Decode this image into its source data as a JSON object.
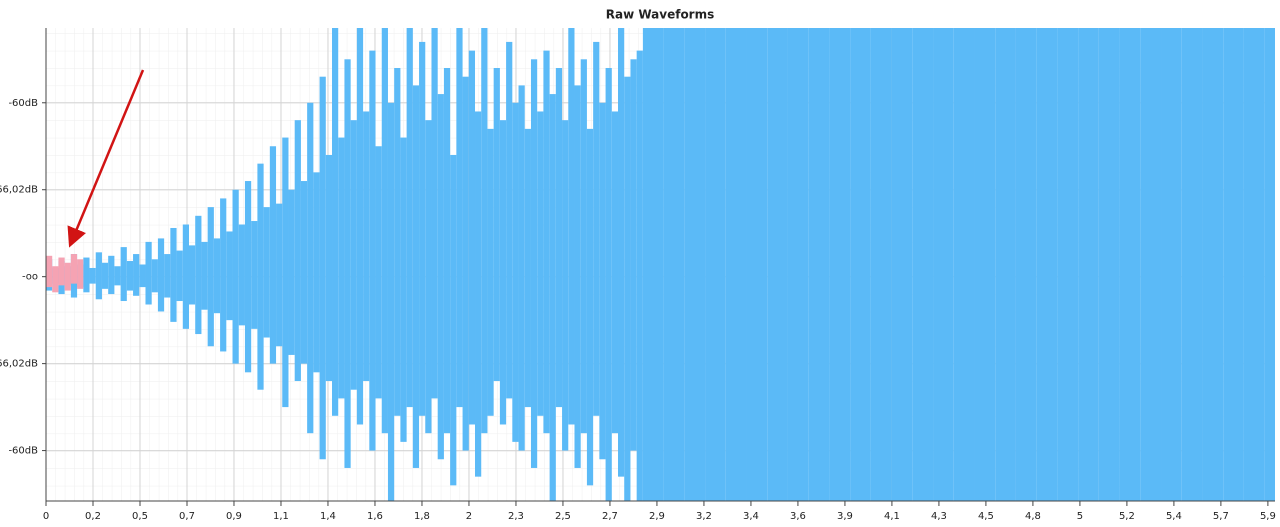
{
  "chart_data": {
    "type": "waveform",
    "title": "Raw Waveforms",
    "xlim": [
      0,
      5.93
    ],
    "xticks": [
      0,
      {
        "value": 0.2268,
        "label": "0,2"
      },
      {
        "value": 0.4535,
        "label": "0,5"
      },
      {
        "value": 0.6803,
        "label": "0,7"
      },
      {
        "value": 0.907,
        "label": "0,9"
      },
      {
        "value": 1.1338,
        "label": "1,1"
      },
      {
        "value": 1.3605,
        "label": "1,4"
      },
      {
        "value": 1.5873,
        "label": "1,6"
      },
      {
        "value": 1.8141,
        "label": "1,8"
      },
      {
        "value": 2.0408,
        "label": "2"
      },
      {
        "value": 2.2676,
        "label": "2,3"
      },
      {
        "value": 2.4943,
        "label": "2,5"
      },
      {
        "value": 2.7211,
        "label": "2,7"
      },
      {
        "value": 2.9478,
        "label": "2,9"
      },
      {
        "value": 3.1746,
        "label": "3,2"
      },
      {
        "value": 3.4014,
        "label": "3,4"
      },
      {
        "value": 3.6281,
        "label": "3,6"
      },
      {
        "value": 3.8549,
        "label": "3,9"
      },
      {
        "value": 4.0816,
        "label": "4,1"
      },
      {
        "value": 4.3084,
        "label": "4,3"
      },
      {
        "value": 4.5351,
        "label": "4,5"
      },
      {
        "value": 4.7619,
        "label": "4,8"
      },
      {
        "value": 4.9887,
        "label": "5"
      },
      {
        "value": 5.2154,
        "label": "5,2"
      },
      {
        "value": 5.4422,
        "label": "5,4"
      },
      {
        "value": 5.6689,
        "label": "5,7"
      },
      {
        "value": 5.8957,
        "label": "5,9"
      }
    ],
    "ylim": [
      -12.9,
      14.3
    ],
    "yticks": [
      {
        "value": 10,
        "label": "-60dB"
      },
      {
        "value": 5,
        "label": "-66,02dB"
      },
      {
        "value": 0,
        "label": "-oo"
      },
      {
        "value": -5,
        "label": "-66,02dB"
      },
      {
        "value": -10,
        "label": "-60dB"
      }
    ],
    "grid": true,
    "series": [
      {
        "color": "#5bbaf7",
        "x": [
          0,
          0.03,
          0.06,
          0.09,
          0.12,
          0.15,
          0.18,
          0.21,
          0.24,
          0.27,
          0.3,
          0.33,
          0.36,
          0.39,
          0.42,
          0.45,
          0.48,
          0.51,
          0.54,
          0.57,
          0.6,
          0.63,
          0.66,
          0.69,
          0.72,
          0.75,
          0.78,
          0.81,
          0.84,
          0.87,
          0.9,
          0.93,
          0.96,
          0.99,
          1.02,
          1.05,
          1.08,
          1.11,
          1.14,
          1.17,
          1.2,
          1.23,
          1.26,
          1.29,
          1.32,
          1.35,
          1.38,
          1.41,
          1.44,
          1.47,
          1.5,
          1.53,
          1.56,
          1.59,
          1.62,
          1.65,
          1.68,
          1.71,
          1.74,
          1.77,
          1.8,
          1.83,
          1.86,
          1.89,
          1.92,
          1.95,
          1.98,
          2.01,
          2.04,
          2.07,
          2.1,
          2.13,
          2.16,
          2.19,
          2.22,
          2.25,
          2.28,
          2.31,
          2.34,
          2.37,
          2.4,
          2.43,
          2.46,
          2.49,
          2.52,
          2.55,
          2.58,
          2.61,
          2.64,
          2.67,
          2.7,
          2.73,
          2.76,
          2.79,
          2.82,
          2.85,
          2.88,
          2.98,
          3.08,
          3.18,
          3.28,
          3.38,
          3.48,
          3.58,
          3.68,
          3.78,
          3.88,
          3.98,
          4.08,
          4.18,
          4.28,
          4.38,
          4.48,
          4.58,
          4.68,
          4.78,
          4.88,
          4.98,
          5.08,
          5.18,
          5.28,
          5.38,
          5.48,
          5.58,
          5.68,
          5.78,
          5.88
        ],
        "max": [
          1.0,
          0.5,
          0.9,
          0.6,
          1.3,
          0.7,
          1.1,
          0.5,
          1.4,
          0.8,
          1.2,
          0.6,
          1.7,
          0.9,
          1.3,
          0.7,
          2.0,
          1.0,
          2.2,
          1.3,
          2.8,
          1.5,
          3.0,
          1.8,
          3.5,
          2.0,
          4.0,
          2.2,
          4.5,
          2.6,
          5.0,
          3.0,
          5.5,
          3.2,
          6.5,
          4.0,
          7.5,
          4.2,
          8.0,
          5.0,
          9.0,
          5.5,
          10.0,
          6.0,
          11.5,
          7.0,
          14.3,
          8.0,
          12.5,
          9.0,
          14.3,
          9.5,
          13.0,
          7.5,
          14.3,
          10.0,
          12.0,
          8.0,
          14.3,
          11.0,
          13.5,
          9.0,
          14.3,
          10.5,
          12.0,
          7.0,
          14.3,
          11.5,
          13.0,
          9.5,
          14.3,
          8.5,
          12.0,
          9.0,
          13.5,
          10.0,
          11.0,
          8.5,
          12.5,
          9.5,
          13.0,
          10.5,
          12.0,
          9.0,
          14.3,
          11.0,
          12.5,
          8.5,
          13.5,
          10.0,
          12.0,
          9.5,
          14.3,
          11.5,
          12.5,
          13.0,
          14.3,
          14.3,
          14.3,
          14.3,
          14.3,
          14.3,
          14.3,
          14.3,
          14.3,
          14.3,
          14.3,
          14.3,
          14.3,
          14.3,
          14.3,
          14.3,
          14.3,
          14.3,
          14.3,
          14.3,
          14.3,
          14.3,
          14.3,
          14.3,
          14.3,
          14.3,
          14.3,
          14.3,
          14.3,
          14.3,
          14.3
        ],
        "min": [
          -0.8,
          -0.4,
          -1.0,
          -0.5,
          -1.2,
          -0.6,
          -0.9,
          -0.4,
          -1.3,
          -0.7,
          -1.0,
          -0.5,
          -1.4,
          -0.8,
          -1.1,
          -0.6,
          -1.6,
          -0.9,
          -2.0,
          -1.2,
          -2.6,
          -1.4,
          -3.0,
          -1.6,
          -3.3,
          -1.9,
          -4.0,
          -2.1,
          -4.3,
          -2.5,
          -5.0,
          -2.8,
          -5.5,
          -3.0,
          -6.5,
          -3.5,
          -5.0,
          -4.0,
          -7.5,
          -4.5,
          -6.0,
          -5.0,
          -9.0,
          -5.5,
          -10.5,
          -6.0,
          -8.0,
          -7.0,
          -11.0,
          -6.5,
          -8.5,
          -6.0,
          -10.0,
          -7.0,
          -9.0,
          -12.9,
          -8.0,
          -9.5,
          -7.5,
          -11.0,
          -8.0,
          -9.0,
          -7.0,
          -10.5,
          -9.0,
          -12.0,
          -7.5,
          -10.0,
          -8.5,
          -11.5,
          -9.0,
          -8.0,
          -6.0,
          -8.5,
          -7.0,
          -9.5,
          -10.0,
          -7.5,
          -11.0,
          -8.0,
          -9.0,
          -12.9,
          -7.5,
          -10.0,
          -8.5,
          -11.0,
          -9.0,
          -12.0,
          -8.0,
          -10.5,
          -12.9,
          -9.0,
          -11.5,
          -12.9,
          -10.0,
          -12.9,
          -12.9,
          -12.9,
          -12.9,
          -12.9,
          -12.9,
          -12.9,
          -12.9,
          -12.9,
          -12.9,
          -12.9,
          -12.9,
          -12.9,
          -12.9,
          -12.9,
          -12.9,
          -12.9,
          -12.9,
          -12.9,
          -12.9,
          -12.9,
          -12.9,
          -12.9,
          -12.9,
          -12.9,
          -12.9,
          -12.9,
          -12.9,
          -12.9,
          -12.9,
          -12.9,
          -12.9
        ]
      },
      {
        "color": "#f5a3b3",
        "x": [
          0,
          0.03,
          0.06,
          0.09,
          0.12,
          0.15
        ],
        "max": [
          1.2,
          0.6,
          1.1,
          0.8,
          1.3,
          1.0
        ],
        "min": [
          -0.6,
          -0.9,
          -0.5,
          -0.8,
          -0.4,
          -0.7
        ]
      }
    ]
  }
}
